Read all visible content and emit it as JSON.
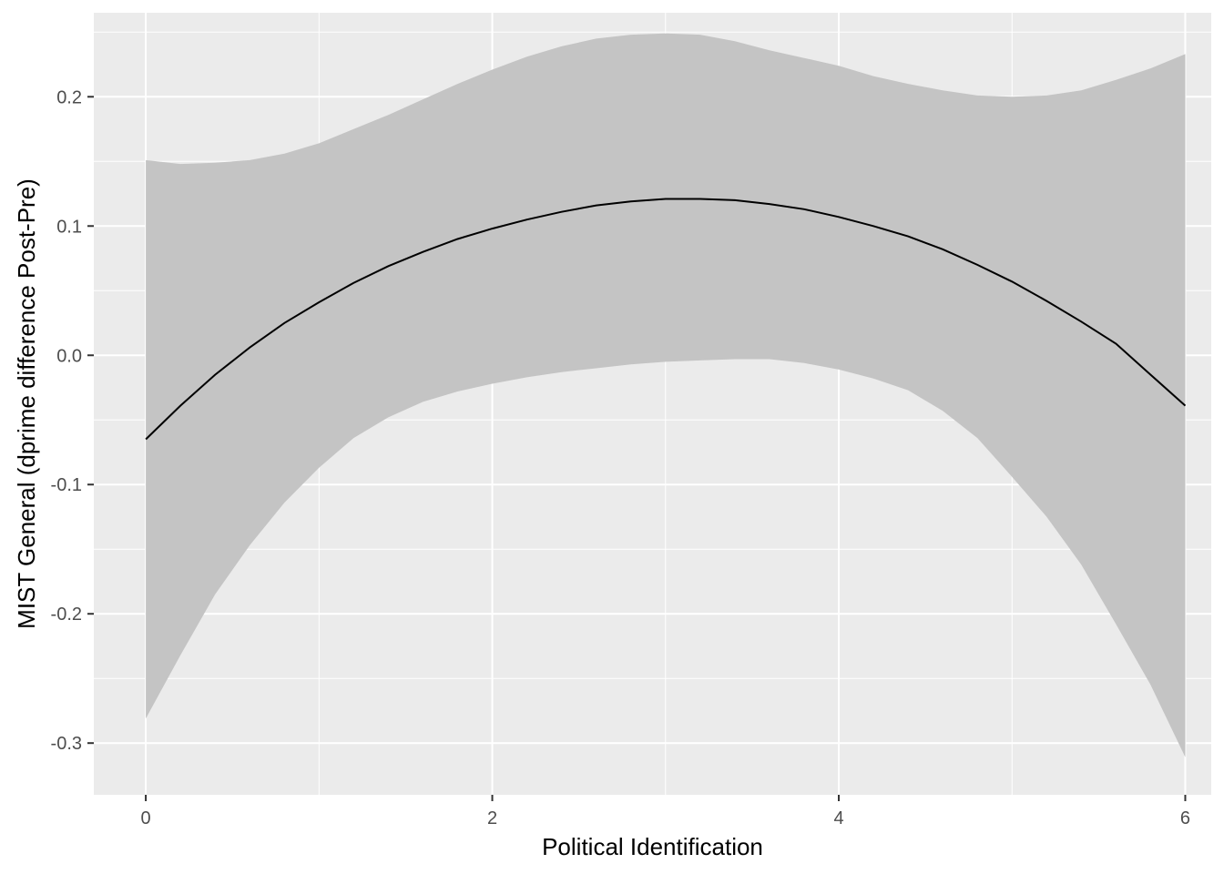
{
  "chart_data": {
    "type": "line",
    "title": "",
    "xlabel": "Political Identification",
    "ylabel": "MIST General (dprime difference Post-Pre)",
    "xlim": [
      -0.3,
      6.15
    ],
    "ylim": [
      -0.34,
      0.265
    ],
    "x_ticks": [
      0,
      2,
      4,
      6
    ],
    "x_tick_labels": [
      "0",
      "2",
      "4",
      "6"
    ],
    "y_ticks": [
      -0.3,
      -0.2,
      -0.1,
      0.0,
      0.1,
      0.2
    ],
    "y_tick_labels": [
      "-0.3",
      "-0.2",
      "-0.1",
      "0.0",
      "0.1",
      "0.2"
    ],
    "grid": true,
    "colors": {
      "panel_background": "#ebebeb",
      "grid": "#ffffff",
      "ribbon": "#c4c4c4",
      "line": "#000000"
    },
    "series": [
      {
        "x": [
          0,
          0.2,
          0.4,
          0.6,
          0.8,
          1.0,
          1.2,
          1.4,
          1.6,
          1.8,
          2.0,
          2.2,
          2.4,
          2.6,
          2.8,
          3.0,
          3.2,
          3.4,
          3.6,
          3.8,
          4.0,
          4.2,
          4.4,
          4.6,
          4.8,
          5.0,
          5.2,
          5.4,
          5.6,
          5.8,
          6.0
        ],
        "y": [
          -0.065,
          -0.039,
          -0.015,
          0.006,
          0.025,
          0.041,
          0.056,
          0.069,
          0.08,
          0.09,
          0.098,
          0.105,
          0.111,
          0.116,
          0.119,
          0.121,
          0.121,
          0.12,
          0.117,
          0.113,
          0.107,
          0.1,
          0.092,
          0.082,
          0.07,
          0.057,
          0.042,
          0.026,
          0.009,
          -0.015,
          -0.039
        ],
        "ymin": [
          -0.281,
          -0.232,
          -0.185,
          -0.147,
          -0.114,
          -0.087,
          -0.064,
          -0.048,
          -0.036,
          -0.028,
          -0.022,
          -0.017,
          -0.013,
          -0.01,
          -0.007,
          -0.005,
          -0.004,
          -0.003,
          -0.003,
          -0.006,
          -0.011,
          -0.018,
          -0.027,
          -0.043,
          -0.064,
          -0.094,
          -0.125,
          -0.162,
          -0.208,
          -0.255,
          -0.311
        ],
        "ymax": [
          0.151,
          0.148,
          0.149,
          0.151,
          0.156,
          0.164,
          0.175,
          0.186,
          0.198,
          0.21,
          0.221,
          0.231,
          0.239,
          0.245,
          0.248,
          0.249,
          0.248,
          0.243,
          0.236,
          0.23,
          0.224,
          0.216,
          0.21,
          0.205,
          0.201,
          0.2,
          0.201,
          0.205,
          0.213,
          0.222,
          0.233
        ]
      }
    ]
  }
}
